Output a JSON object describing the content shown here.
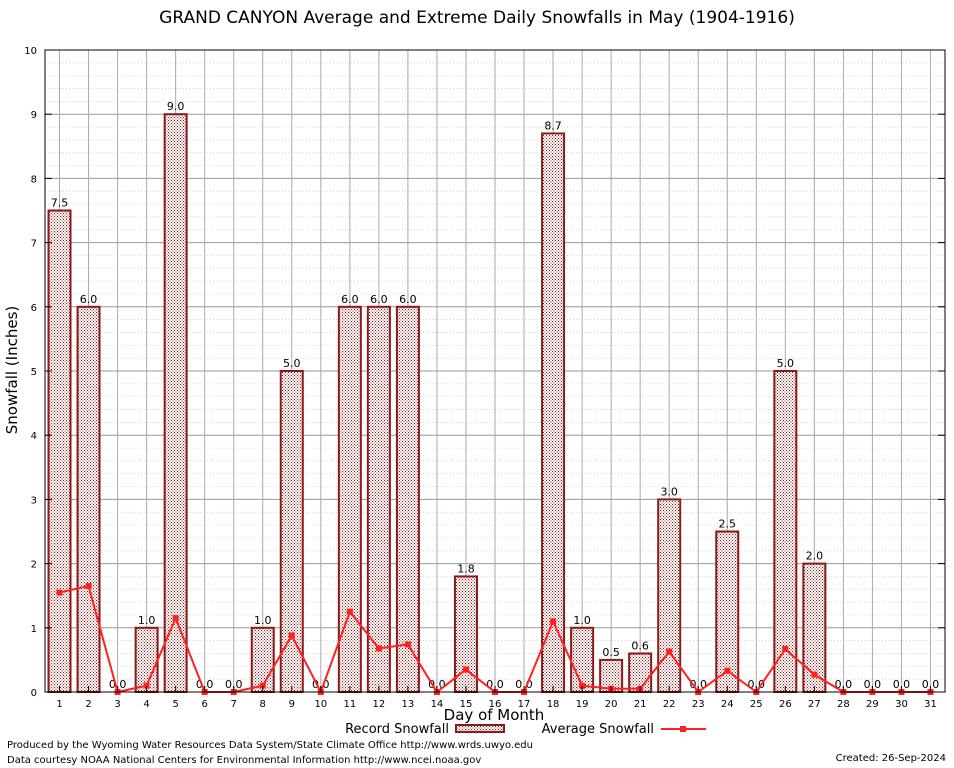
{
  "chart_data": {
    "type": "bar",
    "title": "GRAND CANYON Average and Extreme Daily Snowfalls in May (1904-1916)",
    "xlabel": "Day of Month",
    "ylabel": "Snowfall (Inches)",
    "ylim": [
      0,
      10
    ],
    "yticks": [
      "0",
      "1",
      "2",
      "3",
      "4",
      "5",
      "6",
      "7",
      "8",
      "9",
      "10"
    ],
    "grid": true,
    "legend_position": "bottom",
    "categories": [
      "1",
      "2",
      "3",
      "4",
      "5",
      "6",
      "7",
      "8",
      "9",
      "10",
      "11",
      "12",
      "13",
      "14",
      "15",
      "16",
      "17",
      "18",
      "19",
      "20",
      "21",
      "22",
      "23",
      "24",
      "25",
      "26",
      "27",
      "28",
      "29",
      "30",
      "31"
    ],
    "series": [
      {
        "name": "Record Snowfall",
        "type": "bar",
        "color": "#8b1a1a",
        "values": [
          7.5,
          6.0,
          0.0,
          1.0,
          9.0,
          0.0,
          0.0,
          1.0,
          5.0,
          0.0,
          6.0,
          6.0,
          6.0,
          0.0,
          1.8,
          0.0,
          0.0,
          8.7,
          1.0,
          0.5,
          0.6,
          3.0,
          0.0,
          2.5,
          0.0,
          5.0,
          2.0,
          0.0,
          0.0,
          0.0,
          0.0
        ],
        "labels": [
          "7.5",
          "6.0",
          "0.0",
          "1.0",
          "9.0",
          "0.0",
          "0.0",
          "1.0",
          "5.0",
          "0.0",
          "6.0",
          "6.0",
          "6.0",
          "0.0",
          "1.8",
          "0.0",
          "0.0",
          "8.7",
          "1.0",
          "0.5",
          "0.6",
          "3.0",
          "0.0",
          "2.5",
          "0.0",
          "5.0",
          "2.0",
          "0.0",
          "0.0",
          "0.0",
          "0.0"
        ]
      },
      {
        "name": "Average Snowfall",
        "type": "line",
        "color": "#ff2020",
        "values": [
          1.55,
          1.65,
          0.0,
          0.1,
          1.15,
          0.0,
          0.0,
          0.1,
          0.88,
          0.0,
          1.25,
          0.68,
          0.74,
          0.0,
          0.35,
          0.0,
          0.0,
          1.1,
          0.1,
          0.05,
          0.05,
          0.63,
          0.0,
          0.33,
          0.0,
          0.67,
          0.27,
          0.0,
          0.0,
          0.0,
          0.0
        ]
      }
    ]
  },
  "footer": {
    "line1": "Produced by the Wyoming Water Resources Data System/State Climate Office http://www.wrds.uwyo.edu",
    "line2": "Data courtesy NOAA National Centers for Environmental Information http://www.ncei.noaa.gov",
    "created": "Created: 26-Sep-2024"
  }
}
